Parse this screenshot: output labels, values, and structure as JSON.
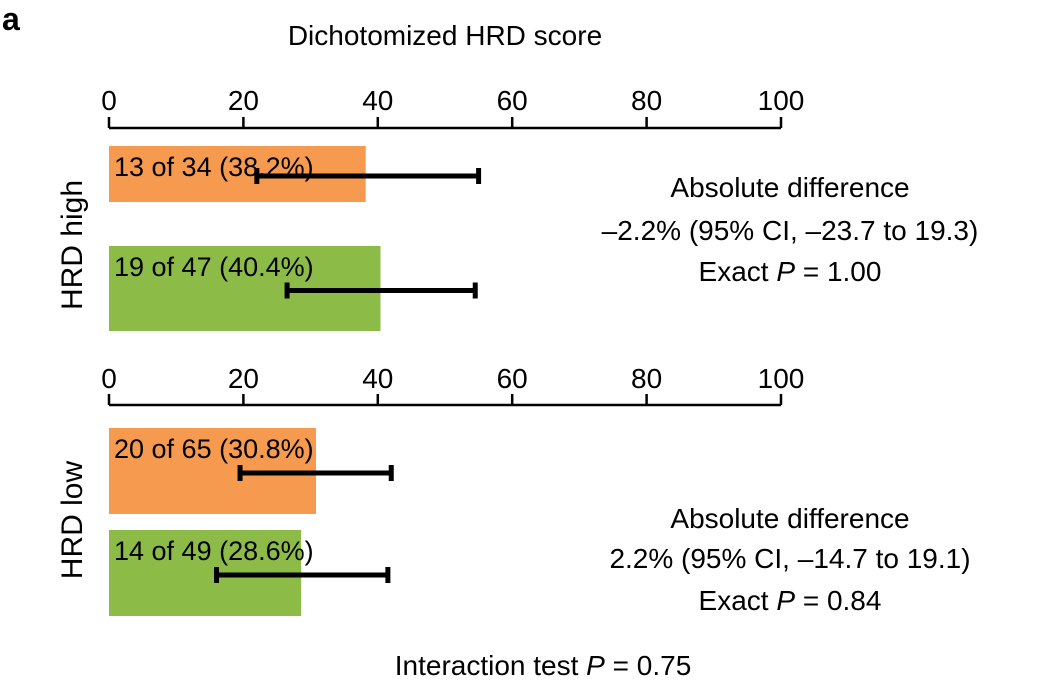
{
  "panel_letter": "a",
  "title": "Dichotomized HRD score",
  "footer": {
    "prefix": "Interaction test ",
    "p_symbol": "P",
    "suffix": " = 0.75"
  },
  "colors": {
    "orange": "#f59a4f",
    "green": "#8dbb48"
  },
  "chart_data": {
    "type": "bar",
    "orientation": "horizontal",
    "xlim": [
      0,
      100
    ],
    "xticks": [
      0,
      20,
      40,
      60,
      80,
      100
    ],
    "grid": false,
    "groups": [
      {
        "label": "HRD high",
        "bars": [
          {
            "text": "13 of 34 (38.2%)",
            "value": 38.2,
            "ci": [
              22,
              55
            ],
            "color": "orange"
          },
          {
            "text": "19 of 47 (40.4%)",
            "value": 40.4,
            "ci": [
              26.5,
              54.5
            ],
            "color": "green"
          }
        ],
        "annotation": {
          "line1": "Absolute difference",
          "line2": "–2.2% (95% CI, –23.7 to 19.3)",
          "line3_prefix": "Exact ",
          "line3_p": "P",
          "line3_suffix": " = 1.00"
        }
      },
      {
        "label": "HRD low",
        "bars": [
          {
            "text": "20 of 65 (30.8%)",
            "value": 30.8,
            "ci": [
              19.5,
              42
            ],
            "color": "orange"
          },
          {
            "text": "14 of 49 (28.6%)",
            "value": 28.6,
            "ci": [
              16,
              41.5
            ],
            "color": "green"
          }
        ],
        "annotation": {
          "line1": "Absolute difference",
          "line2": "2.2% (95% CI, –14.7 to 19.1)",
          "line3_prefix": "Exact ",
          "line3_p": "P",
          "line3_suffix": " = 0.84"
        }
      }
    ]
  }
}
